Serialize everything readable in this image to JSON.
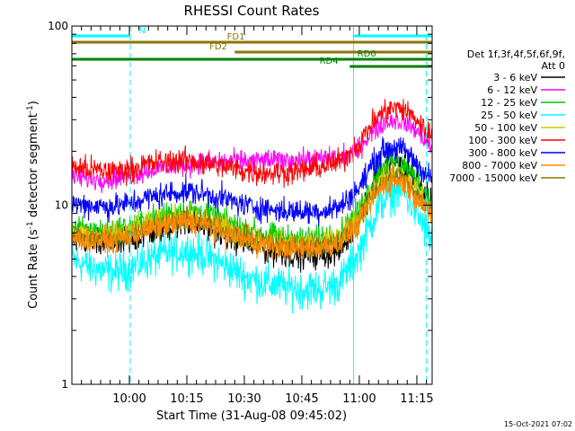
{
  "chart_data": {
    "type": "line",
    "title": "RHESSI Count Rates",
    "xlabel": "Start Time (31-Aug-08 09:45:02)",
    "ylabel_main": "Count Rate (s",
    "ylabel_sup1": "-1",
    "ylabel_mid": " detector segment",
    "ylabel_sup2": "-1",
    "ylabel_end": ")",
    "y_scale": "log",
    "ylim": [
      1,
      100
    ],
    "xlim_minutes": [
      0,
      94
    ],
    "x_ticks": [
      {
        "t": 15,
        "label": "10:00"
      },
      {
        "t": 30,
        "label": "10:15"
      },
      {
        "t": 45,
        "label": "10:30"
      },
      {
        "t": 60,
        "label": "10:45"
      },
      {
        "t": 75,
        "label": "11:00"
      },
      {
        "t": 90,
        "label": "11:15"
      }
    ],
    "y_ticks": [
      {
        "v": 1,
        "label": "1"
      },
      {
        "v": 10,
        "label": "10"
      },
      {
        "v": 100,
        "label": "100"
      }
    ],
    "timestamp": "15-Oct-2021 07:02",
    "legend_header": [
      "Det 1f,3f,4f,5f,6f,9f,",
      "Att 0"
    ],
    "legend": [
      {
        "label": "3 - 6 keV",
        "color": "#000000"
      },
      {
        "label": "6 - 12 keV",
        "color": "#ff00ff"
      },
      {
        "label": "12 - 25 keV",
        "color": "#00cc00"
      },
      {
        "label": "25 - 50 keV",
        "color": "#00ffff"
      },
      {
        "label": "50 - 100 keV",
        "color": "#cccc00"
      },
      {
        "label": "100 - 300 keV",
        "color": "#ff0000"
      },
      {
        "label": "300 - 800 keV",
        "color": "#0000ff"
      },
      {
        "label": "800 - 7000 keV",
        "color": "#ff8800"
      },
      {
        "label": "7000 - 15000 keV",
        "color": "#8b7500"
      }
    ],
    "series": [
      {
        "color": "#00ffff",
        "noise": 0.055,
        "points": [
          [
            0,
            5.0
          ],
          [
            5,
            4.5
          ],
          [
            10,
            4.2
          ],
          [
            15,
            4.4
          ],
          [
            20,
            5.0
          ],
          [
            25,
            5.4
          ],
          [
            30,
            5.6
          ],
          [
            35,
            5.2
          ],
          [
            40,
            4.6
          ],
          [
            45,
            4.0
          ],
          [
            50,
            3.7
          ],
          [
            55,
            3.5
          ],
          [
            60,
            3.4
          ],
          [
            65,
            3.4
          ],
          [
            70,
            3.7
          ],
          [
            75,
            5.5
          ],
          [
            78,
            8.0
          ],
          [
            81,
            10.5
          ],
          [
            84,
            12.0
          ],
          [
            87,
            11.5
          ],
          [
            90,
            9.0
          ],
          [
            93,
            6.8
          ],
          [
            94,
            6.3
          ]
        ]
      },
      {
        "color": "#000000",
        "noise": 0.04,
        "points": [
          [
            0,
            6.5
          ],
          [
            5,
            6.2
          ],
          [
            10,
            6.0
          ],
          [
            15,
            6.3
          ],
          [
            20,
            7.0
          ],
          [
            25,
            7.6
          ],
          [
            30,
            8.0
          ],
          [
            35,
            7.6
          ],
          [
            40,
            6.8
          ],
          [
            45,
            6.2
          ],
          [
            50,
            5.7
          ],
          [
            55,
            5.4
          ],
          [
            60,
            5.3
          ],
          [
            65,
            5.3
          ],
          [
            70,
            5.6
          ],
          [
            75,
            8.5
          ],
          [
            78,
            12.5
          ],
          [
            81,
            16.0
          ],
          [
            84,
            17.5
          ],
          [
            87,
            16.5
          ],
          [
            90,
            13.5
          ],
          [
            93,
            10.5
          ],
          [
            94,
            10.0
          ]
        ]
      },
      {
        "color": "#00cc00",
        "noise": 0.035,
        "points": [
          [
            0,
            7.6
          ],
          [
            5,
            7.2
          ],
          [
            10,
            7.2
          ],
          [
            15,
            7.6
          ],
          [
            20,
            8.4
          ],
          [
            25,
            9.0
          ],
          [
            30,
            9.4
          ],
          [
            35,
            9.0
          ],
          [
            40,
            8.2
          ],
          [
            45,
            7.4
          ],
          [
            50,
            6.9
          ],
          [
            55,
            6.6
          ],
          [
            60,
            6.5
          ],
          [
            65,
            6.6
          ],
          [
            70,
            7.0
          ],
          [
            75,
            9.5
          ],
          [
            78,
            13.0
          ],
          [
            81,
            16.5
          ],
          [
            84,
            17.5
          ],
          [
            87,
            16.5
          ],
          [
            90,
            13.8
          ],
          [
            93,
            11.0
          ],
          [
            94,
            10.4
          ]
        ]
      },
      {
        "color": "#cccc00",
        "noise": 0.035,
        "points": [
          [
            0,
            7.0
          ],
          [
            5,
            6.7
          ],
          [
            10,
            6.7
          ],
          [
            15,
            7.1
          ],
          [
            20,
            7.8
          ],
          [
            25,
            8.3
          ],
          [
            30,
            8.6
          ],
          [
            35,
            8.2
          ],
          [
            40,
            7.5
          ],
          [
            45,
            6.8
          ],
          [
            50,
            6.4
          ],
          [
            55,
            6.2
          ],
          [
            60,
            6.1
          ],
          [
            65,
            6.2
          ],
          [
            70,
            6.6
          ],
          [
            75,
            8.5
          ],
          [
            78,
            11.5
          ],
          [
            81,
            14.0
          ],
          [
            84,
            15.0
          ],
          [
            87,
            14.2
          ],
          [
            90,
            12.0
          ],
          [
            93,
            9.8
          ],
          [
            94,
            9.3
          ]
        ]
      },
      {
        "color": "#8b7500",
        "noise": 0.03,
        "points": [
          [
            0,
            6.8
          ],
          [
            5,
            6.5
          ],
          [
            10,
            6.5
          ],
          [
            15,
            6.9
          ],
          [
            20,
            7.5
          ],
          [
            25,
            8.0
          ],
          [
            30,
            8.3
          ],
          [
            35,
            7.9
          ],
          [
            40,
            7.2
          ],
          [
            45,
            6.6
          ],
          [
            50,
            6.2
          ],
          [
            55,
            6.0
          ],
          [
            60,
            5.9
          ],
          [
            65,
            6.0
          ],
          [
            70,
            6.4
          ],
          [
            75,
            8.2
          ],
          [
            78,
            11.0
          ],
          [
            81,
            13.5
          ],
          [
            84,
            14.5
          ],
          [
            87,
            13.7
          ],
          [
            90,
            11.6
          ],
          [
            93,
            9.5
          ],
          [
            94,
            9.0
          ]
        ]
      },
      {
        "color": "#ff8800",
        "noise": 0.035,
        "points": [
          [
            0,
            6.6
          ],
          [
            5,
            6.3
          ],
          [
            10,
            6.3
          ],
          [
            15,
            6.7
          ],
          [
            20,
            7.3
          ],
          [
            25,
            7.8
          ],
          [
            30,
            8.1
          ],
          [
            35,
            7.7
          ],
          [
            40,
            7.0
          ],
          [
            45,
            6.4
          ],
          [
            50,
            6.0
          ],
          [
            55,
            5.8
          ],
          [
            60,
            5.7
          ],
          [
            65,
            5.8
          ],
          [
            70,
            6.2
          ],
          [
            75,
            7.8
          ],
          [
            78,
            10.5
          ],
          [
            81,
            12.8
          ],
          [
            84,
            13.8
          ],
          [
            87,
            13.2
          ],
          [
            90,
            11.2
          ],
          [
            93,
            9.2
          ],
          [
            94,
            8.8
          ]
        ]
      },
      {
        "color": "#0000ff",
        "noise": 0.035,
        "points": [
          [
            0,
            10.2
          ],
          [
            5,
            10.0
          ],
          [
            10,
            9.8
          ],
          [
            15,
            10.2
          ],
          [
            20,
            11.0
          ],
          [
            25,
            11.6
          ],
          [
            30,
            12.0
          ],
          [
            35,
            11.5
          ],
          [
            40,
            10.8
          ],
          [
            45,
            10.0
          ],
          [
            50,
            9.6
          ],
          [
            55,
            9.3
          ],
          [
            60,
            9.2
          ],
          [
            65,
            9.3
          ],
          [
            70,
            9.8
          ],
          [
            75,
            12.5
          ],
          [
            78,
            16.5
          ],
          [
            81,
            20.0
          ],
          [
            84,
            21.0
          ],
          [
            87,
            20.0
          ],
          [
            90,
            17.0
          ],
          [
            93,
            14.5
          ],
          [
            94,
            14.0
          ]
        ]
      },
      {
        "color": "#ff00ff",
        "noise": 0.03,
        "points": [
          [
            0,
            14.5
          ],
          [
            5,
            14.0
          ],
          [
            10,
            14.0
          ],
          [
            15,
            14.6
          ],
          [
            20,
            15.6
          ],
          [
            25,
            16.4
          ],
          [
            30,
            17.0
          ],
          [
            35,
            17.2
          ],
          [
            40,
            17.4
          ],
          [
            45,
            17.6
          ],
          [
            50,
            17.8
          ],
          [
            55,
            17.8
          ],
          [
            60,
            18.0
          ],
          [
            65,
            18.2
          ],
          [
            70,
            18.4
          ],
          [
            75,
            21.0
          ],
          [
            78,
            25.0
          ],
          [
            81,
            28.5
          ],
          [
            84,
            30.0
          ],
          [
            87,
            29.0
          ],
          [
            90,
            26.0
          ],
          [
            93,
            22.0
          ],
          [
            94,
            21.0
          ]
        ]
      },
      {
        "color": "#ff0000",
        "noise": 0.035,
        "points": [
          [
            0,
            16.5
          ],
          [
            5,
            15.8
          ],
          [
            10,
            15.4
          ],
          [
            15,
            15.8
          ],
          [
            20,
            17.0
          ],
          [
            25,
            17.6
          ],
          [
            30,
            17.8
          ],
          [
            35,
            17.2
          ],
          [
            40,
            16.4
          ],
          [
            45,
            15.6
          ],
          [
            50,
            15.2
          ],
          [
            55,
            15.2
          ],
          [
            60,
            15.6
          ],
          [
            65,
            16.4
          ],
          [
            70,
            17.5
          ],
          [
            75,
            22.0
          ],
          [
            78,
            28.0
          ],
          [
            81,
            33.0
          ],
          [
            84,
            35.0
          ],
          [
            87,
            34.0
          ],
          [
            90,
            30.0
          ],
          [
            93,
            25.0
          ],
          [
            94,
            24.0
          ]
        ]
      }
    ],
    "flag_bars": [
      {
        "label": "N",
        "color": "#00ffff",
        "y": 40,
        "segments": [
          [
            0,
            15.2
          ],
          [
            73.5,
            94
          ]
        ],
        "label_t": 17,
        "label_side": "right"
      },
      {
        "label": "FD1",
        "color": "#8b7500",
        "y": 47,
        "segments": [
          [
            0,
            94
          ]
        ],
        "label_t": 40,
        "label_side": "right"
      },
      {
        "label": "FD2",
        "color": "#8b7500",
        "y": 58,
        "segments": [
          [
            42.5,
            94
          ]
        ],
        "label_t": 41,
        "label_side": "left"
      },
      {
        "label": "RD0",
        "color": "#008000",
        "y": 66,
        "segments": [
          [
            0,
            94
          ]
        ],
        "label_t": 74,
        "label_side": "right"
      },
      {
        "label": "RD4",
        "color": "#008000",
        "y": 74,
        "segments": [
          [
            72.5,
            94
          ]
        ],
        "label_t": 70,
        "label_side": "left"
      }
    ],
    "vertical_markers": [
      {
        "t": 0,
        "color": "#00ffff",
        "style": "solid"
      },
      {
        "t": 15.2,
        "color": "#00ffff",
        "style": "dashed"
      },
      {
        "t": 73.5,
        "color": "#00ffff",
        "style": "solid"
      },
      {
        "t": 92.5,
        "color": "#00ffff",
        "style": "dashed"
      }
    ]
  }
}
